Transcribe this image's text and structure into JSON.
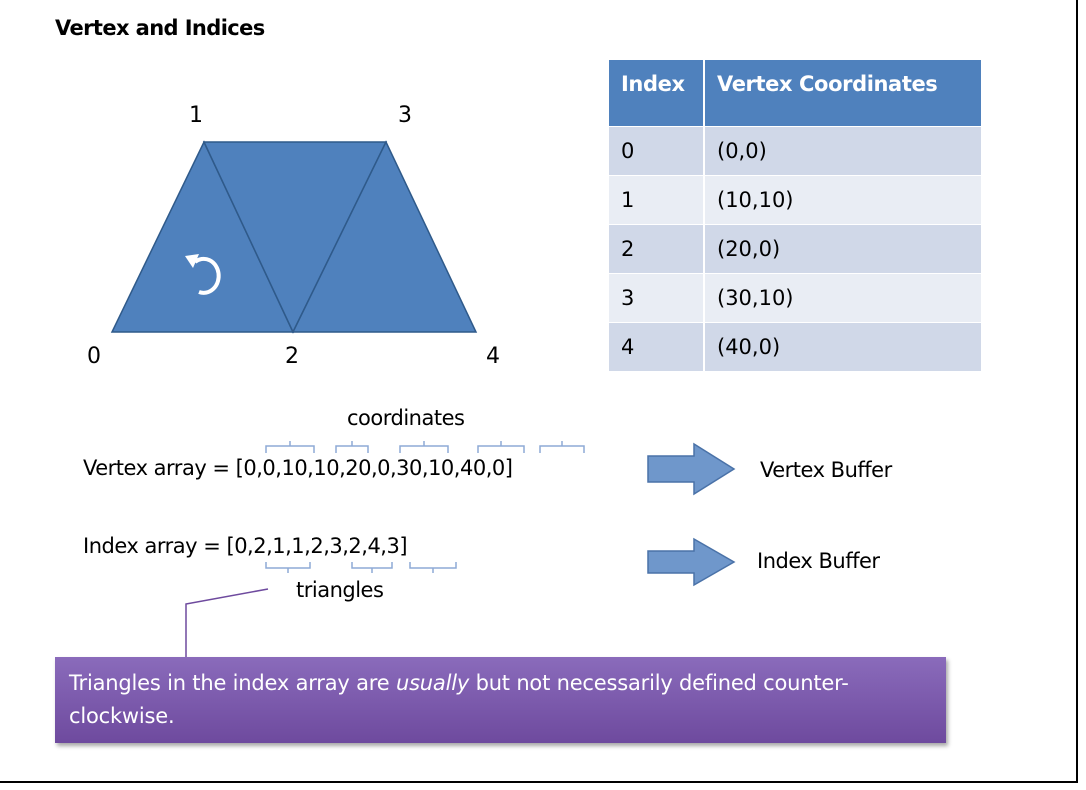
{
  "title": "Vertex and Indices",
  "vertex_labels": [
    "0",
    "1",
    "2",
    "3",
    "4"
  ],
  "table": {
    "headers": [
      "Index",
      "Vertex Coordinates"
    ],
    "rows": [
      [
        "0",
        "(0,0)"
      ],
      [
        "1",
        "(10,10)"
      ],
      [
        "2",
        "(20,0)"
      ],
      [
        "3",
        "(30,10)"
      ],
      [
        "4",
        "(40,0)"
      ]
    ]
  },
  "labels": {
    "coordinates": "coordinates",
    "vertex_array": "Vertex array = [0,0,10,10,20,0,30,10,40,0]",
    "index_array": "Index array = [0,2,1,1,2,3,2,4,3]",
    "triangles": "triangles",
    "vertex_buffer": "Vertex Buffer",
    "index_buffer": "Index Buffer"
  },
  "callout": {
    "before": "Triangles in the index array are ",
    "emphasis": "usually",
    "after": " but not necessarily defined counter-clockwise."
  },
  "colors": {
    "shape_fill": "#4f81bd",
    "arrow_fill": "#6f97cb",
    "callout": "#7a59aa",
    "brace": "#8eaad6"
  },
  "icons": [
    "counter-clockwise-arrow-icon",
    "right-arrow-icon",
    "right-arrow-icon"
  ]
}
